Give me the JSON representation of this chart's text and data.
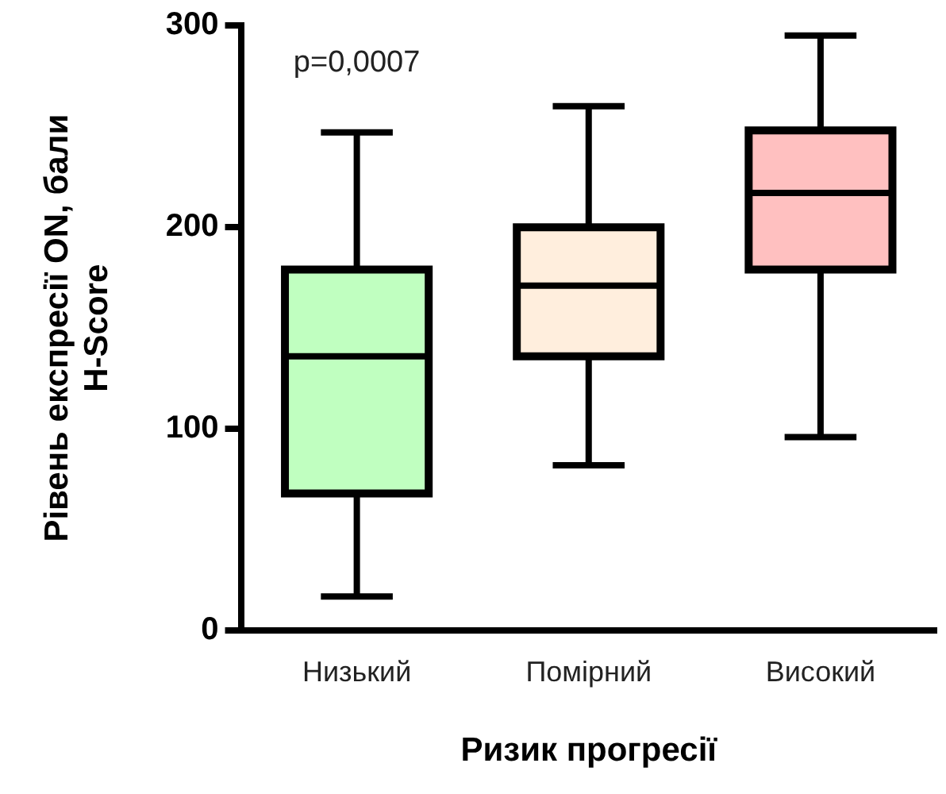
{
  "chart_data": {
    "type": "box",
    "xlabel": "Ризик прогресії",
    "ylabel": "Рівень експресії ON, бали\nH-Score",
    "categories": [
      "Низький",
      "Помірний",
      "Високий"
    ],
    "boxes": [
      {
        "low": 17,
        "q1": 68,
        "median": 136,
        "q3": 179,
        "high": 247
      },
      {
        "low": 82,
        "q1": 136,
        "median": 171,
        "q3": 200,
        "high": 260
      },
      {
        "low": 96,
        "q1": 179,
        "median": 217,
        "q3": 248,
        "high": 295
      }
    ],
    "colors": [
      "#c0ffc0",
      "#ffeedd",
      "#ffc0c0"
    ],
    "ylim": [
      0,
      300
    ],
    "yticks": [
      0,
      100,
      200,
      300
    ],
    "grid": false,
    "legend": false,
    "annotations": [
      "p=0,0007"
    ]
  }
}
